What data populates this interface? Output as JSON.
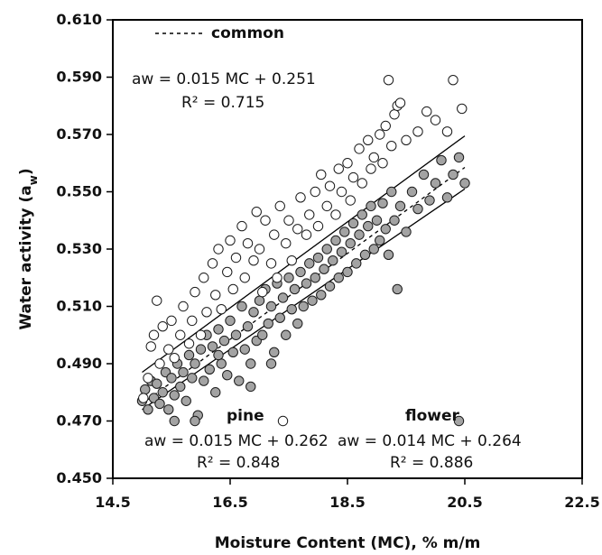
{
  "chart_data": {
    "type": "scatter",
    "xlabel": "Moisture Content (MC),  % m/m",
    "ylabel_main": "Water activity (a",
    "ylabel_sub": "w",
    "ylabel_end": ")",
    "xlim": [
      14.5,
      22.5
    ],
    "ylim": [
      0.45,
      0.61
    ],
    "x_ticks": [
      "14.5",
      "16.5",
      "18.5",
      "20.5",
      "22.5"
    ],
    "y_ticks": [
      "0.450",
      "0.470",
      "0.490",
      "0.510",
      "0.530",
      "0.550",
      "0.570",
      "0.590",
      "0.610"
    ],
    "grid": false,
    "legend": {
      "common": "common",
      "pine": "pine",
      "flower": "flower"
    },
    "annotations": {
      "common_eq": "aw = 0.015 MC + 0.251",
      "common_r2": "R² = 0.715",
      "pine_eq": "aw = 0.015 MC + 0.262",
      "pine_r2": "R² = 0.848",
      "flower_eq": "aw = 0.014 MC + 0.264",
      "flower_r2": "R² = 0.886"
    },
    "series": [
      {
        "name": "pine",
        "marker": "open-circle",
        "color": "#ffffff",
        "fit": {
          "slope": 0.015,
          "intercept": 0.262,
          "x_range": [
            15.0,
            20.5
          ]
        },
        "points": [
          [
            15.02,
            0.478
          ],
          [
            15.1,
            0.485
          ],
          [
            15.15,
            0.496
          ],
          [
            15.2,
            0.5
          ],
          [
            15.25,
            0.512
          ],
          [
            15.3,
            0.49
          ],
          [
            15.35,
            0.503
          ],
          [
            15.45,
            0.495
          ],
          [
            15.5,
            0.505
          ],
          [
            15.55,
            0.492
          ],
          [
            15.65,
            0.5
          ],
          [
            15.7,
            0.51
          ],
          [
            15.8,
            0.497
          ],
          [
            15.85,
            0.505
          ],
          [
            15.9,
            0.515
          ],
          [
            16.0,
            0.5
          ],
          [
            16.05,
            0.52
          ],
          [
            16.1,
            0.508
          ],
          [
            16.2,
            0.525
          ],
          [
            16.25,
            0.514
          ],
          [
            16.3,
            0.53
          ],
          [
            16.35,
            0.509
          ],
          [
            16.45,
            0.522
          ],
          [
            16.5,
            0.533
          ],
          [
            16.55,
            0.516
          ],
          [
            16.6,
            0.527
          ],
          [
            16.7,
            0.538
          ],
          [
            16.75,
            0.52
          ],
          [
            16.8,
            0.532
          ],
          [
            16.9,
            0.526
          ],
          [
            16.95,
            0.543
          ],
          [
            17.0,
            0.53
          ],
          [
            17.05,
            0.515
          ],
          [
            17.1,
            0.54
          ],
          [
            17.2,
            0.525
          ],
          [
            17.25,
            0.535
          ],
          [
            17.3,
            0.52
          ],
          [
            17.35,
            0.545
          ],
          [
            17.45,
            0.532
          ],
          [
            17.5,
            0.54
          ],
          [
            17.55,
            0.526
          ],
          [
            17.65,
            0.537
          ],
          [
            17.7,
            0.548
          ],
          [
            17.8,
            0.535
          ],
          [
            17.85,
            0.542
          ],
          [
            17.95,
            0.55
          ],
          [
            18.0,
            0.538
          ],
          [
            18.05,
            0.556
          ],
          [
            18.15,
            0.545
          ],
          [
            18.2,
            0.552
          ],
          [
            18.3,
            0.542
          ],
          [
            18.35,
            0.558
          ],
          [
            18.4,
            0.55
          ],
          [
            18.5,
            0.56
          ],
          [
            18.55,
            0.547
          ],
          [
            18.6,
            0.555
          ],
          [
            18.7,
            0.565
          ],
          [
            18.75,
            0.553
          ],
          [
            18.85,
            0.568
          ],
          [
            18.9,
            0.558
          ],
          [
            18.95,
            0.562
          ],
          [
            19.05,
            0.57
          ],
          [
            19.1,
            0.56
          ],
          [
            19.15,
            0.573
          ],
          [
            19.2,
            0.589
          ],
          [
            19.25,
            0.566
          ],
          [
            19.3,
            0.577
          ],
          [
            19.35,
            0.58
          ],
          [
            19.4,
            0.581
          ],
          [
            19.5,
            0.568
          ],
          [
            19.7,
            0.571
          ],
          [
            19.85,
            0.578
          ],
          [
            20.0,
            0.575
          ],
          [
            20.2,
            0.571
          ],
          [
            20.3,
            0.589
          ],
          [
            20.45,
            0.579
          ],
          [
            17.4,
            0.47
          ]
        ]
      },
      {
        "name": "flower",
        "marker": "filled-circle",
        "color": "#a3a3a3",
        "fit": {
          "slope": 0.014,
          "intercept": 0.264,
          "x_range": [
            15.0,
            20.5
          ]
        },
        "points": [
          [
            15.0,
            0.477
          ],
          [
            15.05,
            0.481
          ],
          [
            15.1,
            0.474
          ],
          [
            15.15,
            0.484
          ],
          [
            15.2,
            0.478
          ],
          [
            15.25,
            0.483
          ],
          [
            15.3,
            0.476
          ],
          [
            15.35,
            0.48
          ],
          [
            15.4,
            0.487
          ],
          [
            15.45,
            0.474
          ],
          [
            15.5,
            0.485
          ],
          [
            15.55,
            0.479
          ],
          [
            15.6,
            0.49
          ],
          [
            15.65,
            0.482
          ],
          [
            15.7,
            0.487
          ],
          [
            15.75,
            0.477
          ],
          [
            15.8,
            0.493
          ],
          [
            15.85,
            0.485
          ],
          [
            15.9,
            0.49
          ],
          [
            15.95,
            0.472
          ],
          [
            16.0,
            0.495
          ],
          [
            16.05,
            0.484
          ],
          [
            16.1,
            0.5
          ],
          [
            16.15,
            0.488
          ],
          [
            16.2,
            0.496
          ],
          [
            16.25,
            0.48
          ],
          [
            16.3,
            0.502
          ],
          [
            16.35,
            0.49
          ],
          [
            16.4,
            0.498
          ],
          [
            16.45,
            0.486
          ],
          [
            16.5,
            0.505
          ],
          [
            16.55,
            0.494
          ],
          [
            16.6,
            0.5
          ],
          [
            16.65,
            0.484
          ],
          [
            16.7,
            0.51
          ],
          [
            16.75,
            0.495
          ],
          [
            16.8,
            0.503
          ],
          [
            16.85,
            0.49
          ],
          [
            16.9,
            0.508
          ],
          [
            16.95,
            0.498
          ],
          [
            17.0,
            0.512
          ],
          [
            17.05,
            0.5
          ],
          [
            17.1,
            0.516
          ],
          [
            17.15,
            0.504
          ],
          [
            17.2,
            0.51
          ],
          [
            17.25,
            0.494
          ],
          [
            17.3,
            0.518
          ],
          [
            17.35,
            0.506
          ],
          [
            17.4,
            0.513
          ],
          [
            17.45,
            0.5
          ],
          [
            17.5,
            0.52
          ],
          [
            17.55,
            0.509
          ],
          [
            17.6,
            0.516
          ],
          [
            17.65,
            0.504
          ],
          [
            17.7,
            0.522
          ],
          [
            17.75,
            0.51
          ],
          [
            17.8,
            0.518
          ],
          [
            17.85,
            0.525
          ],
          [
            17.9,
            0.512
          ],
          [
            17.95,
            0.52
          ],
          [
            18.0,
            0.527
          ],
          [
            18.05,
            0.514
          ],
          [
            18.1,
            0.523
          ],
          [
            18.15,
            0.53
          ],
          [
            18.2,
            0.517
          ],
          [
            18.25,
            0.526
          ],
          [
            18.3,
            0.533
          ],
          [
            18.35,
            0.52
          ],
          [
            18.4,
            0.529
          ],
          [
            18.45,
            0.536
          ],
          [
            18.5,
            0.522
          ],
          [
            18.55,
            0.532
          ],
          [
            18.6,
            0.539
          ],
          [
            18.65,
            0.525
          ],
          [
            18.7,
            0.535
          ],
          [
            18.75,
            0.542
          ],
          [
            18.8,
            0.528
          ],
          [
            18.85,
            0.538
          ],
          [
            18.9,
            0.545
          ],
          [
            18.95,
            0.53
          ],
          [
            19.0,
            0.54
          ],
          [
            19.05,
            0.533
          ],
          [
            19.1,
            0.546
          ],
          [
            19.15,
            0.537
          ],
          [
            19.2,
            0.528
          ],
          [
            19.25,
            0.55
          ],
          [
            19.3,
            0.54
          ],
          [
            19.35,
            0.516
          ],
          [
            19.4,
            0.545
          ],
          [
            19.5,
            0.536
          ],
          [
            19.6,
            0.55
          ],
          [
            19.7,
            0.544
          ],
          [
            19.8,
            0.556
          ],
          [
            19.9,
            0.547
          ],
          [
            20.0,
            0.553
          ],
          [
            20.1,
            0.561
          ],
          [
            20.2,
            0.548
          ],
          [
            20.3,
            0.556
          ],
          [
            20.4,
            0.562
          ],
          [
            20.5,
            0.553
          ],
          [
            15.55,
            0.47
          ],
          [
            15.9,
            0.47
          ],
          [
            16.85,
            0.482
          ],
          [
            17.2,
            0.49
          ],
          [
            16.3,
            0.493
          ],
          [
            20.4,
            0.47
          ]
        ]
      }
    ],
    "common_fit": {
      "slope": 0.015,
      "intercept": 0.251,
      "x_range": [
        15.0,
        20.5
      ],
      "style": "dashed"
    }
  }
}
